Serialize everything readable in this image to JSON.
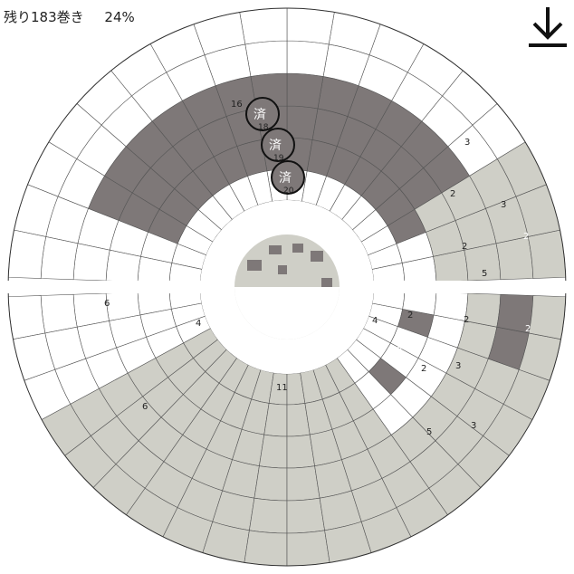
{
  "status": {
    "remaining": "残り183巻き",
    "progress_percent": "24%"
  },
  "icons": {
    "download": "download-arrow-icon"
  },
  "colors": {
    "white": "#ffffff",
    "light": "#cfcfc7",
    "dark": "#7e7878",
    "line": "#333333"
  },
  "wheel": {
    "sectors": [
      {
        "id": "upper",
        "rows": [
          {
            "fill": "light",
            "label": "16"
          },
          {
            "fill": "dark",
            "label": "18",
            "done": "済"
          },
          {
            "fill": "dark",
            "label": "19",
            "done": "済"
          },
          {
            "fill": "dark",
            "label": "20",
            "done": "済"
          }
        ]
      },
      {
        "id": "right-upper",
        "labels": [
          "3",
          "2",
          "3",
          "2",
          "5"
        ],
        "highlight": "2"
      },
      {
        "id": "right-lower",
        "labels": [
          "2",
          "2",
          "2",
          "4",
          "2",
          "3",
          "3",
          "5"
        ],
        "highlight": "2"
      },
      {
        "id": "bottom",
        "labels": [
          "6",
          "4",
          "6",
          "11"
        ]
      }
    ]
  }
}
